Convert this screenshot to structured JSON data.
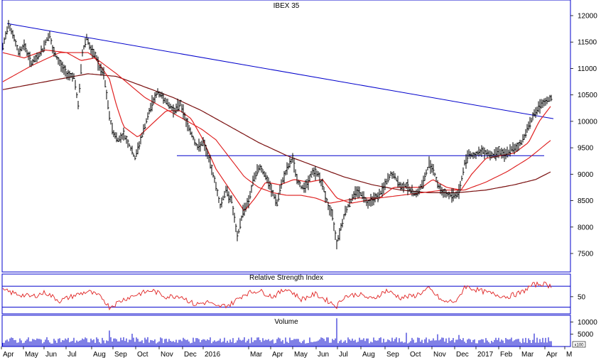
{
  "chart_data": [
    {
      "type": "candlestick",
      "title": "IBEX 35",
      "ylim": [
        7100,
        12300
      ],
      "y_ticks": [
        7500,
        8000,
        8500,
        9000,
        9500,
        10000,
        10500,
        11000,
        11500,
        12000
      ],
      "x_ticks": [
        "Apr",
        "May",
        "Jun",
        "Jul",
        "Aug",
        "Sep",
        "Oct",
        "Nov",
        "Dec",
        "2016",
        "Mar",
        "Apr",
        "May",
        "Jun",
        "Jul",
        "Aug",
        "Sep",
        "Oct",
        "Nov",
        "Dec",
        "2017",
        "Feb",
        "Mar",
        "Apr",
        "M"
      ],
      "price_anchors": [
        [
          0,
          11400
        ],
        [
          8,
          11850
        ],
        [
          14,
          11650
        ],
        [
          22,
          11300
        ],
        [
          30,
          11450
        ],
        [
          40,
          11100
        ],
        [
          48,
          11200
        ],
        [
          56,
          11350
        ],
        [
          60,
          11500
        ],
        [
          66,
          11650
        ],
        [
          70,
          11350
        ],
        [
          80,
          11100
        ],
        [
          90,
          10900
        ],
        [
          100,
          10850
        ],
        [
          106,
          10300
        ],
        [
          112,
          11300
        ],
        [
          118,
          11600
        ],
        [
          125,
          11300
        ],
        [
          131,
          11250
        ],
        [
          136,
          11000
        ],
        [
          142,
          10900
        ],
        [
          150,
          10100
        ],
        [
          155,
          9800
        ],
        [
          162,
          9650
        ],
        [
          170,
          9750
        ],
        [
          178,
          9550
        ],
        [
          186,
          9300
        ],
        [
          194,
          9650
        ],
        [
          202,
          10000
        ],
        [
          210,
          10350
        ],
        [
          218,
          10550
        ],
        [
          226,
          10450
        ],
        [
          234,
          10300
        ],
        [
          242,
          10200
        ],
        [
          250,
          10350
        ],
        [
          258,
          10000
        ],
        [
          266,
          9750
        ],
        [
          274,
          9500
        ],
        [
          282,
          9600
        ],
        [
          290,
          9300
        ],
        [
          298,
          8900
        ],
        [
          306,
          8400
        ],
        [
          314,
          8700
        ],
        [
          322,
          8500
        ],
        [
          330,
          7800
        ],
        [
          338,
          8300
        ],
        [
          346,
          8500
        ],
        [
          354,
          8950
        ],
        [
          362,
          9150
        ],
        [
          370,
          8950
        ],
        [
          378,
          8700
        ],
        [
          386,
          8450
        ],
        [
          394,
          8900
        ],
        [
          402,
          9150
        ],
        [
          408,
          9300
        ],
        [
          414,
          8900
        ],
        [
          420,
          8750
        ],
        [
          428,
          8800
        ],
        [
          436,
          9050
        ],
        [
          444,
          9000
        ],
        [
          452,
          8700
        ],
        [
          458,
          8400
        ],
        [
          464,
          8200
        ],
        [
          470,
          7700
        ],
        [
          476,
          8000
        ],
        [
          482,
          8300
        ],
        [
          490,
          8500
        ],
        [
          498,
          8700
        ],
        [
          506,
          8600
        ],
        [
          514,
          8450
        ],
        [
          522,
          8550
        ],
        [
          530,
          8600
        ],
        [
          538,
          8800
        ],
        [
          546,
          9000
        ],
        [
          552,
          8950
        ],
        [
          560,
          8750
        ],
        [
          568,
          8800
        ],
        [
          576,
          8650
        ],
        [
          584,
          8650
        ],
        [
          592,
          8850
        ],
        [
          600,
          9200
        ],
        [
          606,
          9100
        ],
        [
          612,
          8800
        ],
        [
          620,
          8650
        ],
        [
          628,
          8600
        ],
        [
          636,
          8600
        ],
        [
          642,
          8650
        ],
        [
          650,
          9200
        ],
        [
          656,
          9400
        ],
        [
          662,
          9350
        ],
        [
          670,
          9400
        ],
        [
          676,
          9450
        ],
        [
          682,
          9400
        ],
        [
          690,
          9350
        ],
        [
          698,
          9450
        ],
        [
          706,
          9350
        ],
        [
          714,
          9450
        ],
        [
          722,
          9500
        ],
        [
          730,
          9600
        ],
        [
          738,
          9850
        ],
        [
          746,
          10100
        ],
        [
          754,
          10250
        ],
        [
          762,
          10350
        ],
        [
          772,
          10450
        ]
      ],
      "moving_average_short": [
        [
          0,
          11300
        ],
        [
          30,
          11200
        ],
        [
          60,
          11350
        ],
        [
          90,
          11300
        ],
        [
          110,
          11150
        ],
        [
          130,
          11200
        ],
        [
          150,
          10800
        ],
        [
          160,
          10300
        ],
        [
          170,
          9900
        ],
        [
          190,
          9700
        ],
        [
          210,
          9950
        ],
        [
          230,
          10200
        ],
        [
          250,
          10200
        ],
        [
          265,
          10050
        ],
        [
          280,
          9700
        ],
        [
          300,
          9100
        ],
        [
          320,
          8700
        ],
        [
          340,
          8300
        ],
        [
          355,
          8550
        ],
        [
          370,
          8850
        ],
        [
          390,
          8800
        ],
        [
          410,
          8900
        ],
        [
          430,
          8850
        ],
        [
          450,
          8900
        ],
        [
          470,
          8550
        ],
        [
          490,
          8450
        ],
        [
          510,
          8500
        ],
        [
          530,
          8550
        ],
        [
          550,
          8750
        ],
        [
          570,
          8750
        ],
        [
          590,
          8750
        ],
        [
          605,
          8900
        ],
        [
          625,
          8750
        ],
        [
          645,
          8700
        ],
        [
          660,
          9000
        ],
        [
          680,
          9300
        ],
        [
          700,
          9350
        ],
        [
          720,
          9400
        ],
        [
          740,
          9600
        ],
        [
          755,
          10000
        ],
        [
          772,
          10300
        ]
      ],
      "moving_average_mid": [
        [
          0,
          10750
        ],
        [
          40,
          11050
        ],
        [
          80,
          11300
        ],
        [
          120,
          11300
        ],
        [
          160,
          10900
        ],
        [
          200,
          10450
        ],
        [
          240,
          10150
        ],
        [
          280,
          9850
        ],
        [
          300,
          9650
        ],
        [
          320,
          9300
        ],
        [
          340,
          8950
        ],
        [
          360,
          8750
        ],
        [
          380,
          8650
        ],
        [
          400,
          8600
        ],
        [
          420,
          8600
        ],
        [
          440,
          8550
        ],
        [
          460,
          8450
        ],
        [
          480,
          8500
        ],
        [
          500,
          8550
        ],
        [
          530,
          8550
        ],
        [
          560,
          8600
        ],
        [
          590,
          8650
        ],
        [
          620,
          8700
        ],
        [
          650,
          8700
        ],
        [
          680,
          8850
        ],
        [
          710,
          9050
        ],
        [
          740,
          9300
        ],
        [
          772,
          9650
        ]
      ],
      "moving_average_long": [
        [
          0,
          10600
        ],
        [
          60,
          10750
        ],
        [
          120,
          10900
        ],
        [
          160,
          10850
        ],
        [
          200,
          10650
        ],
        [
          240,
          10450
        ],
        [
          280,
          10200
        ],
        [
          320,
          9900
        ],
        [
          360,
          9600
        ],
        [
          400,
          9350
        ],
        [
          440,
          9150
        ],
        [
          480,
          8950
        ],
        [
          520,
          8800
        ],
        [
          560,
          8700
        ],
        [
          600,
          8650
        ],
        [
          640,
          8650
        ],
        [
          680,
          8700
        ],
        [
          720,
          8800
        ],
        [
          750,
          8900
        ],
        [
          772,
          9050
        ]
      ],
      "trendline": [
        [
          6,
          11850
        ],
        [
          775,
          10050
        ]
      ],
      "support_line": [
        [
          245,
          9350
        ],
        [
          762,
          9350
        ]
      ]
    },
    {
      "type": "line",
      "title": "Relative Strength Index",
      "y_ticks": [
        50
      ],
      "upper_band": 70,
      "lower_band": 30,
      "rsi_anchors": [
        [
          0,
          62
        ],
        [
          20,
          55
        ],
        [
          40,
          50
        ],
        [
          60,
          58
        ],
        [
          80,
          42
        ],
        [
          100,
          52
        ],
        [
          120,
          60
        ],
        [
          140,
          48
        ],
        [
          150,
          30
        ],
        [
          170,
          45
        ],
        [
          190,
          55
        ],
        [
          210,
          62
        ],
        [
          230,
          50
        ],
        [
          250,
          52
        ],
        [
          270,
          35
        ],
        [
          290,
          40
        ],
        [
          300,
          30
        ],
        [
          320,
          35
        ],
        [
          340,
          55
        ],
        [
          360,
          62
        ],
        [
          380,
          50
        ],
        [
          400,
          66
        ],
        [
          420,
          45
        ],
        [
          440,
          55
        ],
        [
          460,
          40
        ],
        [
          470,
          32
        ],
        [
          480,
          50
        ],
        [
          500,
          55
        ],
        [
          520,
          45
        ],
        [
          540,
          62
        ],
        [
          560,
          48
        ],
        [
          580,
          52
        ],
        [
          600,
          65
        ],
        [
          620,
          40
        ],
        [
          640,
          42
        ],
        [
          650,
          70
        ],
        [
          670,
          62
        ],
        [
          690,
          55
        ],
        [
          710,
          50
        ],
        [
          730,
          58
        ],
        [
          745,
          72
        ],
        [
          760,
          75
        ],
        [
          772,
          70
        ]
      ]
    },
    {
      "type": "bar",
      "title": "Volume",
      "y_ticks": [
        10000,
        5000
      ],
      "scale_label": "x100",
      "ylim": [
        0,
        11000
      ],
      "peaks": [
        [
          150,
          6500
        ],
        [
          182,
          5200
        ],
        [
          470,
          11500
        ],
        [
          568,
          5600
        ],
        [
          612,
          5000
        ],
        [
          642,
          4700
        ],
        [
          748,
          5300
        ]
      ]
    }
  ]
}
